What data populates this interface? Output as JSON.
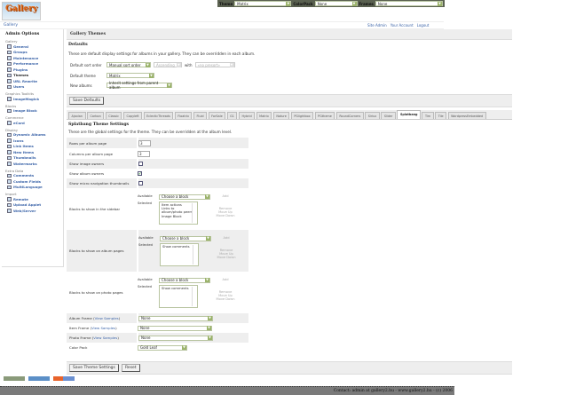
{
  "topbar": {
    "theme_label": "Theme",
    "theme_value": "Matrix",
    "colorpack_label": "ColorPack",
    "colorpack_value": "None",
    "frames_label": "Frames",
    "frames_value": "None"
  },
  "logo_text": "Gallery",
  "breadcrumb": "Gallery",
  "toplinks": [
    "Site Admin",
    "Your Account",
    "Logout"
  ],
  "sidebar": {
    "title": "Admin Options",
    "groups": [
      {
        "label": "Gallery",
        "items": [
          "General",
          "Groups",
          "Maintenance",
          "Performance",
          "Plugins",
          "Themes",
          "URL Rewrite",
          "Users"
        ]
      },
      {
        "label": "Graphics Toolkits",
        "items": [
          "ImageMagick"
        ]
      },
      {
        "label": "Blocks",
        "items": [
          "Image Block"
        ]
      },
      {
        "label": "Commerce",
        "items": [
          "eCard"
        ]
      },
      {
        "label": "Display",
        "items": [
          "Dynamic Albums",
          "Icons",
          "Link Items",
          "New Items",
          "Thumbnails",
          "Watermarks"
        ]
      },
      {
        "label": "Extra Data",
        "items": [
          "Comments",
          "Custom Fields",
          "MultiLanguage"
        ]
      },
      {
        "label": "Import",
        "items": [
          "Remote",
          "Upload Applet",
          "Web/Server"
        ]
      }
    ],
    "current": "Themes"
  },
  "main": {
    "title": "Gallery Themes",
    "defaults": {
      "heading": "Defaults",
      "description": "These are default display settings for albums in your gallery. They can be overridden in each album.",
      "sort_label": "Default sort order",
      "sort_value": "Manual sort order",
      "sort_dir": "Ascending",
      "with_label": "with",
      "with_value": "«no presort»",
      "theme_label": "Default theme",
      "theme_value": "Matrix",
      "new_albums_label": "New albums",
      "new_albums_value": "Inherit settings from parent album",
      "save_button": "Save Defaults"
    },
    "tabs": [
      "Ajaxian",
      "Carbon",
      "Classic",
      "Copyleft",
      "EclecticThreads",
      "Floatrix",
      "Fluid",
      "ForSale",
      "G1",
      "Hybrid",
      "Matrix",
      "Nature",
      "PGlightbox",
      "PGtheme",
      "RoundCorners",
      "Siriux",
      "Slider",
      "Splatbang",
      "Tim",
      "Tile",
      "WordpressEmbedded"
    ],
    "active_tab": "Splatbang",
    "settings": {
      "heading": "Splatbang Theme Settings",
      "description": "These are the global settings for the theme. They can be overridden at the album level.",
      "rows_label": "Rows per album page",
      "rows_value": "3",
      "cols_label": "Columns per album page",
      "cols_value": "3",
      "image_owners_label": "Show image owners",
      "image_owners": false,
      "album_owners_label": "Show album owners",
      "album_owners": true,
      "micro_nav_label": "Show micro navigation thumbnails",
      "micro_nav": false,
      "available_label": "Available",
      "selected_label": "Selected",
      "choose": "Choose a block",
      "add": "Add",
      "remove": "Remove",
      "move_up": "Move Up",
      "move_down": "Move Down",
      "sidebar_blocks_label": "Blocks to show in the sidebar",
      "sidebar_blocks": [
        "Item actions",
        "Links to album/photo peers",
        "Image Block"
      ],
      "album_blocks_label": "Blocks to show on album pages",
      "album_blocks": [
        "Show comments"
      ],
      "photo_blocks_label": "Blocks to show on photo pages",
      "photo_blocks": [
        "Show comments"
      ],
      "view_samples": "View Samples",
      "album_frame_label": "Album Frame",
      "album_frame": "None",
      "item_frame_label": "Item Frame",
      "item_frame": "None",
      "photo_frame_label": "Photo Frame",
      "photo_frame": "None",
      "color_pack_label": "Color Pack",
      "color_pack": "Gold Leaf",
      "save_button": "Save Theme Settings",
      "reset_button": "Reset"
    }
  },
  "badges": [
    "W3C XHTML 1.0",
    "Gallery 2",
    "Gallery 2.2"
  ],
  "footer": "Contact: admin at gallery2.hu - www.gallery2.hu - (c) 2006"
}
